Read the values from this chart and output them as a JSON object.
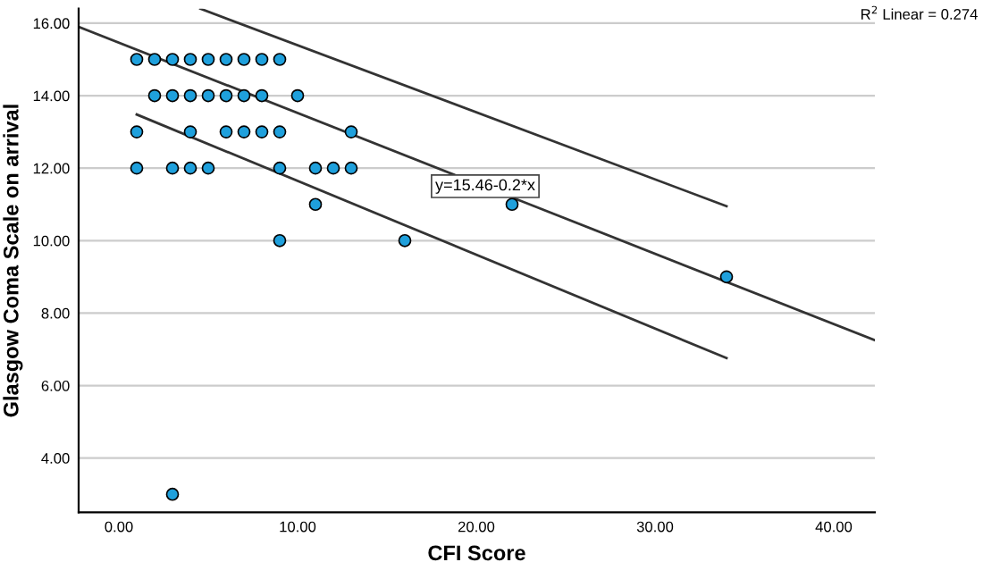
{
  "chart_data": {
    "type": "scatter",
    "xlabel": "CFI Score",
    "ylabel": "Glasgow Coma Scale on arrival",
    "xlim": [
      -2.25,
      42.3
    ],
    "ylim": [
      2.5,
      16.4
    ],
    "xticks": [
      {
        "value": 0,
        "label": "0.00"
      },
      {
        "value": 10,
        "label": "10.00"
      },
      {
        "value": 20,
        "label": "20.00"
      },
      {
        "value": 30,
        "label": "30.00"
      },
      {
        "value": 40,
        "label": "40.00"
      }
    ],
    "yticks": [
      {
        "value": 4,
        "label": "4.00"
      },
      {
        "value": 6,
        "label": "6.00"
      },
      {
        "value": 8,
        "label": "8.00"
      },
      {
        "value": 10,
        "label": "10.00"
      },
      {
        "value": 12,
        "label": "12.00"
      },
      {
        "value": 14,
        "label": "14.00"
      },
      {
        "value": 16,
        "label": "16.00"
      }
    ],
    "grid": "y",
    "legend": false,
    "series": [
      {
        "color": "#1fa0dc",
        "marker": "circle",
        "x": [
          1,
          2,
          3,
          4,
          5,
          6,
          7,
          8,
          9,
          2,
          3,
          4,
          5,
          6,
          7,
          8,
          10,
          1,
          4,
          6,
          7,
          8,
          9,
          13,
          1,
          3,
          4,
          5,
          9,
          11,
          12,
          13,
          11,
          22,
          9,
          16,
          34,
          3
        ],
        "values": [
          15,
          15,
          15,
          15,
          15,
          15,
          15,
          15,
          15,
          14,
          14,
          14,
          14,
          14,
          14,
          14,
          14,
          13,
          13,
          13,
          13,
          13,
          13,
          13,
          12,
          12,
          12,
          12,
          12,
          12,
          12,
          12,
          11,
          11,
          10,
          10,
          9,
          3
        ]
      },
      {
        "type": "line",
        "color": "#333333",
        "marker": "none",
        "line_style": "solid",
        "x": [
          -2.25,
          42.3
        ],
        "values": [
          15.9,
          7.25
        ]
      },
      {
        "type": "line",
        "color": "#333333",
        "marker": "none",
        "line_style": "solid",
        "x": [
          4.56,
          34.0
        ],
        "values": [
          16.4,
          10.95
        ]
      },
      {
        "type": "line",
        "color": "#333333",
        "marker": "none",
        "line_style": "solid",
        "x": [
          1.0,
          34.0
        ],
        "values": [
          13.48,
          6.76
        ]
      }
    ],
    "annotations": [
      {
        "text": "y=15.46-0.2*x",
        "x": 20.5,
        "y": 11.5
      },
      "R$^{2}$ Linear = 0.274"
    ]
  }
}
